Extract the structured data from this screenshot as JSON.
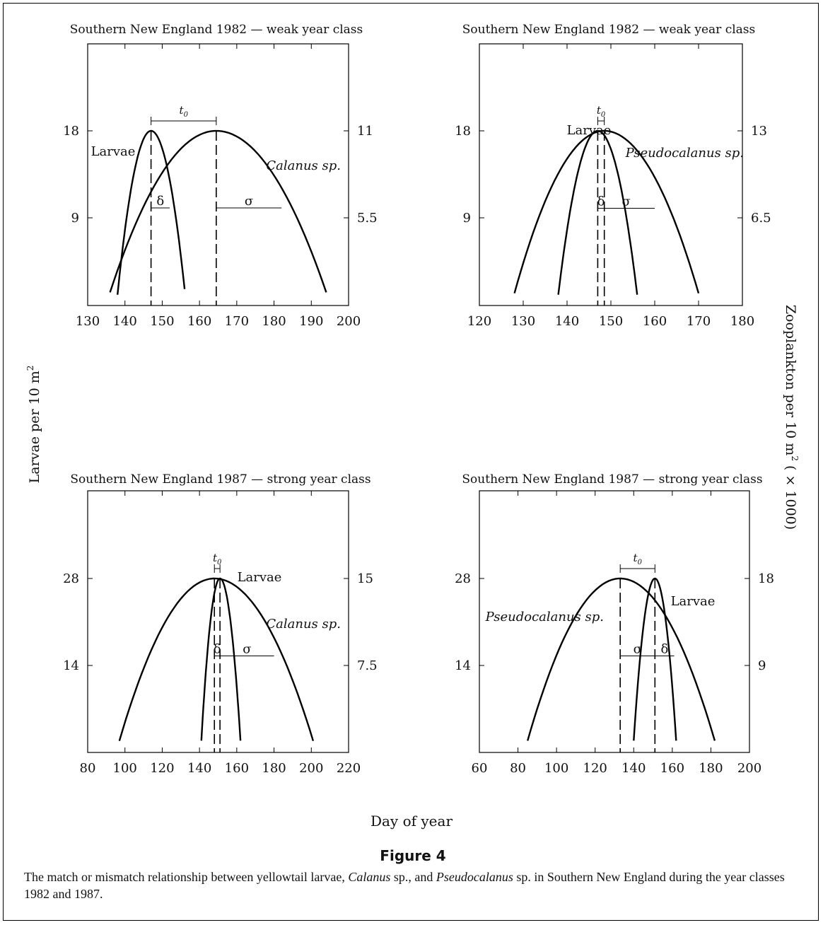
{
  "figure": {
    "title": "Figure 4",
    "caption_parts": [
      "The match or mismatch relationship between yellowtail larvae, ",
      "Calanus",
      " sp., and ",
      "Pseudocalanus",
      " sp. in Southern New England during the year classes 1982 and 1987."
    ],
    "ylabel_left": "Larvae per 10 m",
    "ylabel_left_sup": "2",
    "ylabel_right": "Zooplankton per 10 m",
    "ylabel_right_sup": "2",
    "ylabel_right_tail": " ( × 1000)",
    "xlabel": "Day of year"
  },
  "colors": {
    "line": "#000000",
    "axis": "#000000",
    "text": "#111111"
  },
  "chart_data": [
    {
      "type": "line",
      "title": "Southern New England 1982 — weak year class",
      "xlim": [
        130,
        200
      ],
      "xticks": [
        130,
        140,
        150,
        160,
        170,
        180,
        190,
        200
      ],
      "left_ticks": [
        "18",
        "9"
      ],
      "right_ticks": [
        "11",
        "5.5"
      ],
      "annotations": {
        "t0": "t",
        "t0_sub": "0",
        "delta": "δ",
        "sigma": "σ",
        "larvae": "Larvae",
        "zoo": "Calanus sp."
      },
      "series": [
        {
          "name": "Larvae",
          "peak_x": 147,
          "x_start": 138,
          "x_end": 156,
          "peak_left": 18,
          "start_left": 0.4,
          "end_left": 1.0
        },
        {
          "name": "Calanus sp.",
          "peak_x": 164.5,
          "x_start": 136,
          "x_end": 194,
          "peak_right": 11,
          "start_right": 0.4,
          "end_right": 0.4
        }
      ],
      "t0_span": [
        147,
        164.5
      ],
      "delta_span": [
        147,
        152
      ],
      "sigma_span": [
        164.5,
        182
      ]
    },
    {
      "type": "line",
      "title": "Southern New England 1982 — weak year class",
      "xlim": [
        120,
        180
      ],
      "xticks": [
        120,
        130,
        140,
        150,
        160,
        170,
        180
      ],
      "left_ticks": [
        "18",
        "9"
      ],
      "right_ticks": [
        "13",
        "6.5"
      ],
      "annotations": {
        "t0": "t",
        "t0_sub": "0",
        "delta": "δ",
        "sigma": "σ",
        "larvae": "Larvae",
        "zoo": "Pseudocalanus sp."
      },
      "series": [
        {
          "name": "Larvae",
          "peak_x": 147,
          "x_start": 138,
          "x_end": 156,
          "peak_left": 18,
          "start_left": 0.4,
          "end_left": 0.4
        },
        {
          "name": "Pseudocalanus sp.",
          "peak_x": 148.5,
          "x_start": 128,
          "x_end": 170,
          "peak_right": 13,
          "start_right": 0.4,
          "end_right": 0.4
        }
      ],
      "t0_span": [
        147,
        148.5
      ],
      "delta_span": [
        147,
        148.5
      ],
      "sigma_span": [
        147,
        160
      ]
    },
    {
      "type": "line",
      "title": "Southern New England 1987 — strong year class",
      "xlim": [
        80,
        220
      ],
      "xticks": [
        80,
        100,
        120,
        140,
        160,
        180,
        200,
        220
      ],
      "left_ticks": [
        "28",
        "14"
      ],
      "right_ticks": [
        "15",
        "7.5"
      ],
      "annotations": {
        "t0": "t",
        "t0_sub": "0",
        "delta": "δ",
        "sigma": "σ",
        "larvae": "Larvae",
        "zoo": "Calanus sp."
      },
      "series": [
        {
          "name": "Larvae",
          "peak_x": 151,
          "x_start": 141,
          "x_end": 162,
          "peak_left": 28,
          "start_left": 0.8,
          "end_left": 0.8
        },
        {
          "name": "Calanus sp.",
          "peak_x": 148,
          "x_start": 97,
          "x_end": 201,
          "peak_right": 15,
          "start_right": 0.4,
          "end_right": 0.4
        }
      ],
      "t0_span": [
        148,
        151
      ],
      "delta_span": [
        148,
        151
      ],
      "sigma_span": [
        151,
        180
      ]
    },
    {
      "type": "line",
      "title": "Southern New England 1987 — strong year class",
      "xlim": [
        60,
        200
      ],
      "xticks": [
        60,
        80,
        100,
        120,
        140,
        160,
        180,
        200
      ],
      "left_ticks": [
        "28",
        "14"
      ],
      "right_ticks": [
        "18",
        "9"
      ],
      "annotations": {
        "t0": "t",
        "t0_sub": "0",
        "delta": "δ",
        "sigma": "σ",
        "larvae": "Larvae",
        "zoo": "Pseudocalanus sp."
      },
      "series": [
        {
          "name": "Larvae",
          "peak_x": 151,
          "x_start": 140,
          "x_end": 162,
          "peak_left": 28,
          "start_left": 0.8,
          "end_left": 0.8
        },
        {
          "name": "Pseudocalanus sp.",
          "peak_x": 133,
          "x_start": 85,
          "x_end": 182,
          "peak_right": 18,
          "start_right": 0.5,
          "end_right": 0.5
        }
      ],
      "t0_span": [
        133,
        151
      ],
      "delta_span": [
        151,
        161
      ],
      "sigma_span": [
        133,
        151
      ]
    }
  ]
}
